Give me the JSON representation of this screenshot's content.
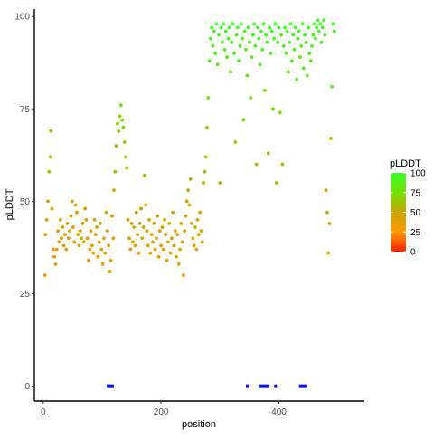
{
  "chart_data": {
    "type": "scatter",
    "xlabel": "position",
    "ylabel": "pLDDT",
    "xlim": [
      -15,
      545
    ],
    "ylim": [
      -4,
      102
    ],
    "x_ticks": [
      0,
      200,
      400
    ],
    "y_ticks": [
      0,
      25,
      50,
      75,
      100
    ],
    "grid": false,
    "legend": {
      "title": "pLDDT",
      "placement": "right",
      "ticks": [
        0,
        25,
        50,
        75,
        100
      ],
      "gradient": [
        "#ff2200",
        "#ff9900",
        "#c8a500",
        "#77e100",
        "#33ff22"
      ]
    },
    "points": [
      [
        3,
        30
      ],
      [
        4,
        41
      ],
      [
        6,
        45
      ],
      [
        8,
        50
      ],
      [
        10,
        58
      ],
      [
        12,
        62
      ],
      [
        13,
        69
      ],
      [
        15,
        48
      ],
      [
        17,
        37
      ],
      [
        19,
        35
      ],
      [
        21,
        33
      ],
      [
        23,
        37
      ],
      [
        25,
        42
      ],
      [
        27,
        39
      ],
      [
        29,
        45
      ],
      [
        31,
        40
      ],
      [
        33,
        43
      ],
      [
        35,
        38
      ],
      [
        37,
        41
      ],
      [
        39,
        37
      ],
      [
        41,
        44
      ],
      [
        43,
        40
      ],
      [
        45,
        42
      ],
      [
        47,
        46
      ],
      [
        49,
        50
      ],
      [
        51,
        43
      ],
      [
        53,
        39
      ],
      [
        55,
        49
      ],
      [
        57,
        47
      ],
      [
        59,
        41
      ],
      [
        61,
        38
      ],
      [
        63,
        42
      ],
      [
        65,
        40
      ],
      [
        67,
        44
      ],
      [
        69,
        39
      ],
      [
        71,
        48
      ],
      [
        73,
        45
      ],
      [
        75,
        40
      ],
      [
        77,
        34
      ],
      [
        79,
        37
      ],
      [
        81,
        42
      ],
      [
        83,
        38
      ],
      [
        85,
        36
      ],
      [
        87,
        45
      ],
      [
        89,
        41
      ],
      [
        91,
        43
      ],
      [
        93,
        35
      ],
      [
        95,
        39
      ],
      [
        97,
        44
      ],
      [
        99,
        37
      ],
      [
        101,
        33
      ],
      [
        103,
        40
      ],
      [
        105,
        36
      ],
      [
        107,
        47
      ],
      [
        109,
        42
      ],
      [
        111,
        38
      ],
      [
        113,
        31
      ],
      [
        115,
        34
      ],
      [
        117,
        46
      ],
      [
        119,
        40
      ],
      [
        120,
        53
      ],
      [
        122,
        58
      ],
      [
        124,
        65
      ],
      [
        126,
        71
      ],
      [
        128,
        69
      ],
      [
        130,
        73
      ],
      [
        132,
        76
      ],
      [
        134,
        72
      ],
      [
        136,
        70
      ],
      [
        138,
        66
      ],
      [
        140,
        62
      ],
      [
        142,
        59
      ],
      [
        144,
        45
      ],
      [
        146,
        40
      ],
      [
        148,
        37
      ],
      [
        150,
        44
      ],
      [
        152,
        39
      ],
      [
        154,
        43
      ],
      [
        156,
        38
      ],
      [
        158,
        47
      ],
      [
        160,
        41
      ],
      [
        162,
        36
      ],
      [
        164,
        44
      ],
      [
        166,
        48
      ],
      [
        168,
        40
      ],
      [
        170,
        43
      ],
      [
        172,
        57
      ],
      [
        174,
        49
      ],
      [
        176,
        42
      ],
      [
        178,
        38
      ],
      [
        180,
        45
      ],
      [
        182,
        36
      ],
      [
        184,
        41
      ],
      [
        186,
        39
      ],
      [
        188,
        44
      ],
      [
        190,
        37
      ],
      [
        192,
        40
      ],
      [
        194,
        46
      ],
      [
        196,
        35
      ],
      [
        198,
        42
      ],
      [
        200,
        38
      ],
      [
        202,
        43
      ],
      [
        204,
        37
      ],
      [
        206,
        45
      ],
      [
        208,
        41
      ],
      [
        210,
        34
      ],
      [
        212,
        39
      ],
      [
        214,
        44
      ],
      [
        216,
        36
      ],
      [
        218,
        40
      ],
      [
        220,
        47
      ],
      [
        222,
        38
      ],
      [
        224,
        42
      ],
      [
        226,
        35
      ],
      [
        228,
        41
      ],
      [
        230,
        33
      ],
      [
        232,
        37
      ],
      [
        234,
        44
      ],
      [
        236,
        39
      ],
      [
        238,
        30
      ],
      [
        240,
        42
      ],
      [
        242,
        46
      ],
      [
        244,
        50
      ],
      [
        246,
        53
      ],
      [
        248,
        49
      ],
      [
        250,
        56
      ],
      [
        252,
        44
      ],
      [
        254,
        40
      ],
      [
        256,
        38
      ],
      [
        258,
        43
      ],
      [
        260,
        37
      ],
      [
        262,
        45
      ],
      [
        264,
        41
      ],
      [
        266,
        47
      ],
      [
        268,
        42
      ],
      [
        270,
        39
      ],
      [
        272,
        55
      ],
      [
        274,
        58
      ],
      [
        276,
        62
      ],
      [
        278,
        70
      ],
      [
        280,
        78
      ],
      [
        282,
        88
      ],
      [
        284,
        94
      ],
      [
        286,
        97
      ],
      [
        288,
        92
      ],
      [
        290,
        96
      ],
      [
        292,
        90
      ],
      [
        294,
        98
      ],
      [
        296,
        87
      ],
      [
        298,
        95
      ],
      [
        300,
        55
      ],
      [
        302,
        97
      ],
      [
        304,
        93
      ],
      [
        306,
        98
      ],
      [
        308,
        91
      ],
      [
        310,
        96
      ],
      [
        312,
        89
      ],
      [
        314,
        94
      ],
      [
        316,
        97
      ],
      [
        318,
        85
      ],
      [
        320,
        93
      ],
      [
        322,
        98
      ],
      [
        324,
        90
      ],
      [
        326,
        66
      ],
      [
        328,
        95
      ],
      [
        330,
        97
      ],
      [
        332,
        88
      ],
      [
        334,
        92
      ],
      [
        336,
        98
      ],
      [
        338,
        94
      ],
      [
        340,
        72
      ],
      [
        342,
        96
      ],
      [
        344,
        91
      ],
      [
        346,
        84
      ],
      [
        348,
        97
      ],
      [
        350,
        93
      ],
      [
        352,
        78
      ],
      [
        354,
        89
      ],
      [
        356,
        95
      ],
      [
        358,
        98
      ],
      [
        360,
        92
      ],
      [
        362,
        60
      ],
      [
        364,
        97
      ],
      [
        366,
        94
      ],
      [
        368,
        87
      ],
      [
        370,
        96
      ],
      [
        372,
        91
      ],
      [
        374,
        98
      ],
      [
        376,
        80
      ],
      [
        378,
        95
      ],
      [
        380,
        93
      ],
      [
        382,
        63
      ],
      [
        384,
        97
      ],
      [
        386,
        90
      ],
      [
        388,
        96
      ],
      [
        390,
        75
      ],
      [
        392,
        94
      ],
      [
        394,
        98
      ],
      [
        396,
        55
      ],
      [
        398,
        93
      ],
      [
        400,
        97
      ],
      [
        402,
        74
      ],
      [
        404,
        95
      ],
      [
        406,
        60
      ],
      [
        408,
        92
      ],
      [
        410,
        97
      ],
      [
        412,
        90
      ],
      [
        414,
        96
      ],
      [
        416,
        85
      ],
      [
        418,
        93
      ],
      [
        420,
        98
      ],
      [
        422,
        88
      ],
      [
        424,
        95
      ],
      [
        426,
        91
      ],
      [
        428,
        97
      ],
      [
        430,
        83
      ],
      [
        432,
        94
      ],
      [
        434,
        96
      ],
      [
        436,
        89
      ],
      [
        438,
        92
      ],
      [
        440,
        98
      ],
      [
        442,
        86
      ],
      [
        444,
        95
      ],
      [
        446,
        93
      ],
      [
        448,
        84
      ],
      [
        450,
        97
      ],
      [
        452,
        90
      ],
      [
        454,
        88
      ],
      [
        456,
        92
      ],
      [
        458,
        95
      ],
      [
        460,
        98
      ],
      [
        462,
        94
      ],
      [
        464,
        97
      ],
      [
        466,
        99
      ],
      [
        468,
        96
      ],
      [
        470,
        98
      ],
      [
        472,
        93
      ],
      [
        474,
        97
      ],
      [
        476,
        99
      ],
      [
        478,
        95
      ],
      [
        480,
        53
      ],
      [
        482,
        47
      ],
      [
        484,
        36
      ],
      [
        486,
        44
      ],
      [
        488,
        67
      ],
      [
        490,
        81
      ],
      [
        492,
        98
      ],
      [
        494,
        96
      ]
    ],
    "markers": [
      [
        108,
        120
      ],
      [
        344,
        348
      ],
      [
        366,
        384
      ],
      [
        392,
        396
      ],
      [
        434,
        448
      ]
    ]
  }
}
